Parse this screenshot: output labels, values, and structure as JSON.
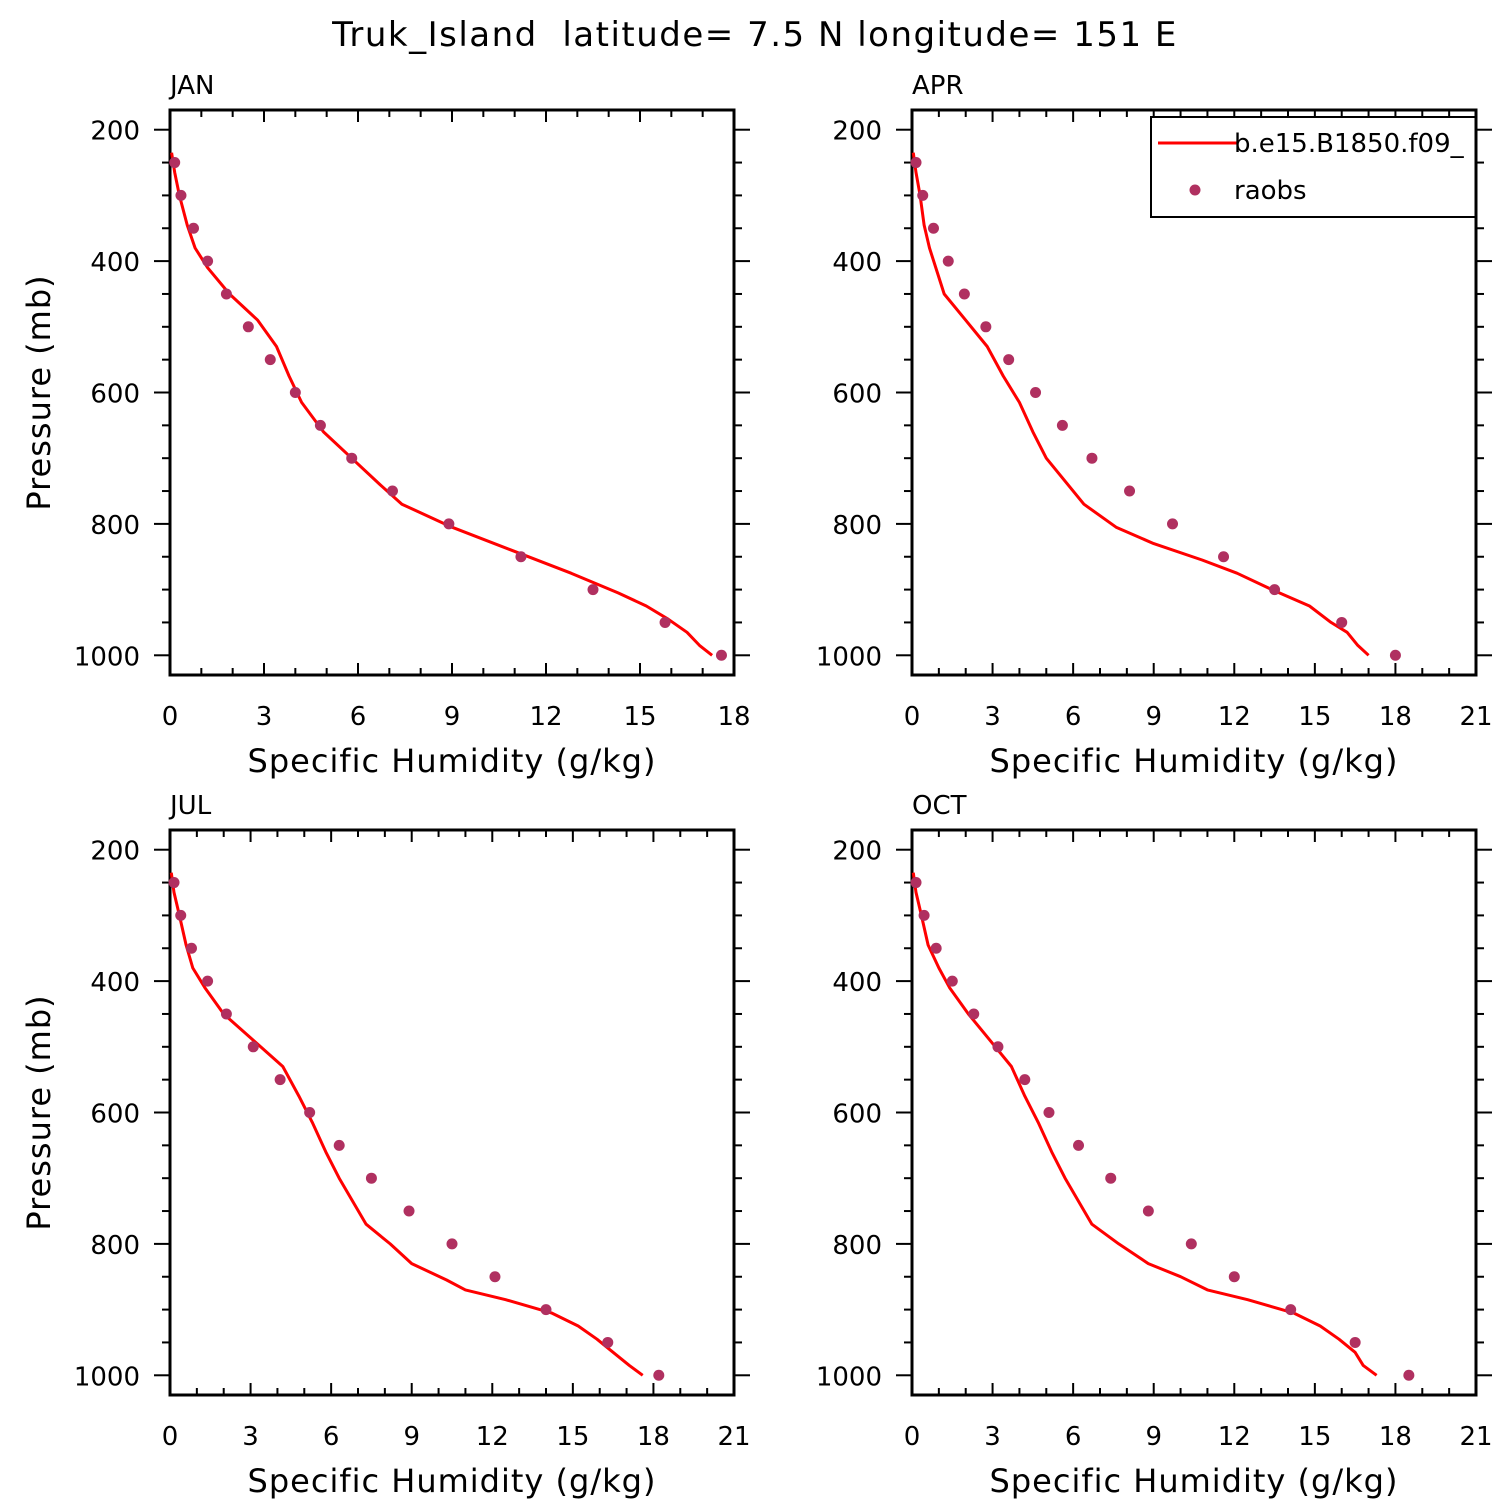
{
  "figure_title": "Truk_Island  latitude= 7.5 N longitude= 151 E",
  "legend": {
    "model_label": "b.e15.B1850.f09_",
    "obs_label": "raobs",
    "model_color": "#ff0000",
    "obs_color": "#b03060"
  },
  "chart_data": [
    {
      "type": "line",
      "panel": "JAN",
      "xlabel": "Specific Humidity (g/kg)",
      "ylabel": "Pressure (mb)",
      "xlim": [
        0,
        18
      ],
      "ylim": [
        1000,
        200
      ],
      "xticks": [
        0,
        3,
        6,
        9,
        12,
        15,
        18
      ],
      "yticks": [
        200,
        400,
        600,
        800,
        1000
      ],
      "series": [
        {
          "name": "b.e15.B1850.f09_",
          "points": [
            [
              0.05,
              235
            ],
            [
              0.15,
              265
            ],
            [
              0.3,
              300
            ],
            [
              0.55,
              345
            ],
            [
              0.8,
              380
            ],
            [
              1.2,
              410
            ],
            [
              1.9,
              450
            ],
            [
              2.8,
              490
            ],
            [
              3.4,
              530
            ],
            [
              3.8,
              575
            ],
            [
              4.2,
              615
            ],
            [
              4.9,
              660
            ],
            [
              5.8,
              700
            ],
            [
              6.7,
              740
            ],
            [
              7.4,
              770
            ],
            [
              9.0,
              805
            ],
            [
              10.9,
              840
            ],
            [
              12.8,
              875
            ],
            [
              14.3,
              905
            ],
            [
              15.2,
              925
            ],
            [
              15.9,
              945
            ],
            [
              16.5,
              965
            ],
            [
              16.9,
              985
            ],
            [
              17.3,
              1000
            ]
          ]
        },
        {
          "name": "raobs",
          "points": [
            [
              0.15,
              250
            ],
            [
              0.35,
              300
            ],
            [
              0.75,
              350
            ],
            [
              1.2,
              400
            ],
            [
              1.8,
              450
            ],
            [
              2.5,
              500
            ],
            [
              3.2,
              550
            ],
            [
              4.0,
              600
            ],
            [
              4.8,
              650
            ],
            [
              5.8,
              700
            ],
            [
              7.1,
              750
            ],
            [
              8.9,
              800
            ],
            [
              11.2,
              850
            ],
            [
              13.5,
              900
            ],
            [
              15.8,
              950
            ],
            [
              17.6,
              1000
            ]
          ]
        }
      ]
    },
    {
      "type": "line",
      "panel": "APR",
      "xlabel": "Specific Humidity (g/kg)",
      "ylabel": "",
      "xlim": [
        0,
        21
      ],
      "ylim": [
        1000,
        200
      ],
      "xticks": [
        0,
        3,
        6,
        9,
        12,
        15,
        18,
        21
      ],
      "yticks": [
        200,
        400,
        600,
        800,
        1000
      ],
      "series": [
        {
          "name": "b.e15.B1850.f09_",
          "points": [
            [
              0.05,
              235
            ],
            [
              0.15,
              265
            ],
            [
              0.3,
              300
            ],
            [
              0.45,
              345
            ],
            [
              0.65,
              380
            ],
            [
              1.2,
              450
            ],
            [
              2.0,
              490
            ],
            [
              2.8,
              530
            ],
            [
              3.4,
              575
            ],
            [
              4.0,
              615
            ],
            [
              4.5,
              660
            ],
            [
              5.0,
              700
            ],
            [
              6.4,
              770
            ],
            [
              7.6,
              805
            ],
            [
              9.0,
              830
            ],
            [
              10.8,
              855
            ],
            [
              12.1,
              875
            ],
            [
              13.4,
              900
            ],
            [
              14.8,
              925
            ],
            [
              15.6,
              950
            ],
            [
              16.2,
              965
            ],
            [
              16.6,
              985
            ],
            [
              17.0,
              1000
            ]
          ]
        },
        {
          "name": "raobs",
          "points": [
            [
              0.15,
              250
            ],
            [
              0.4,
              300
            ],
            [
              0.8,
              350
            ],
            [
              1.35,
              400
            ],
            [
              1.95,
              450
            ],
            [
              2.75,
              500
            ],
            [
              3.6,
              550
            ],
            [
              4.6,
              600
            ],
            [
              5.6,
              650
            ],
            [
              6.7,
              700
            ],
            [
              8.1,
              750
            ],
            [
              9.7,
              800
            ],
            [
              11.6,
              850
            ],
            [
              13.5,
              900
            ],
            [
              16.0,
              950
            ],
            [
              18.0,
              1000
            ]
          ]
        }
      ]
    },
    {
      "type": "line",
      "panel": "JUL",
      "xlabel": "Specific Humidity (g/kg)",
      "ylabel": "Pressure (mb)",
      "xlim": [
        0,
        21
      ],
      "ylim": [
        1000,
        200
      ],
      "xticks": [
        0,
        3,
        6,
        9,
        12,
        15,
        18,
        21
      ],
      "yticks": [
        200,
        400,
        600,
        800,
        1000
      ],
      "series": [
        {
          "name": "b.e15.B1850.f09_",
          "points": [
            [
              0.05,
              235
            ],
            [
              0.15,
              265
            ],
            [
              0.35,
              300
            ],
            [
              0.6,
              345
            ],
            [
              0.85,
              380
            ],
            [
              1.3,
              410
            ],
            [
              2.0,
              450
            ],
            [
              3.1,
              490
            ],
            [
              4.2,
              530
            ],
            [
              4.8,
              575
            ],
            [
              5.3,
              615
            ],
            [
              5.8,
              660
            ],
            [
              6.3,
              700
            ],
            [
              7.3,
              770
            ],
            [
              8.2,
              800
            ],
            [
              9.0,
              830
            ],
            [
              10.3,
              855
            ],
            [
              11.0,
              870
            ],
            [
              12.5,
              885
            ],
            [
              14.2,
              905
            ],
            [
              15.2,
              925
            ],
            [
              15.9,
              945
            ],
            [
              16.5,
              965
            ],
            [
              17.1,
              985
            ],
            [
              17.6,
              1000
            ]
          ]
        },
        {
          "name": "raobs",
          "points": [
            [
              0.15,
              250
            ],
            [
              0.4,
              300
            ],
            [
              0.8,
              350
            ],
            [
              1.4,
              400
            ],
            [
              2.1,
              450
            ],
            [
              3.1,
              500
            ],
            [
              4.1,
              550
            ],
            [
              5.2,
              600
            ],
            [
              6.3,
              650
            ],
            [
              7.5,
              700
            ],
            [
              8.9,
              750
            ],
            [
              10.5,
              800
            ],
            [
              12.1,
              850
            ],
            [
              14.0,
              900
            ],
            [
              16.3,
              950
            ],
            [
              18.2,
              1000
            ]
          ]
        }
      ]
    },
    {
      "type": "line",
      "panel": "OCT",
      "xlabel": "Specific Humidity (g/kg)",
      "ylabel": "",
      "xlim": [
        0,
        21
      ],
      "ylim": [
        1000,
        200
      ],
      "xticks": [
        0,
        3,
        6,
        9,
        12,
        15,
        18,
        21
      ],
      "yticks": [
        200,
        400,
        600,
        800,
        1000
      ],
      "series": [
        {
          "name": "b.e15.B1850.f09_",
          "points": [
            [
              0.05,
              235
            ],
            [
              0.15,
              265
            ],
            [
              0.35,
              300
            ],
            [
              0.6,
              345
            ],
            [
              1.0,
              380
            ],
            [
              1.4,
              410
            ],
            [
              2.1,
              450
            ],
            [
              2.9,
              490
            ],
            [
              3.7,
              530
            ],
            [
              4.2,
              575
            ],
            [
              4.7,
              615
            ],
            [
              5.2,
              660
            ],
            [
              5.7,
              700
            ],
            [
              6.7,
              770
            ],
            [
              7.7,
              800
            ],
            [
              8.8,
              830
            ],
            [
              10.0,
              850
            ],
            [
              11.0,
              870
            ],
            [
              12.5,
              885
            ],
            [
              14.2,
              905
            ],
            [
              15.2,
              925
            ],
            [
              15.9,
              945
            ],
            [
              16.5,
              965
            ],
            [
              16.8,
              985
            ],
            [
              17.3,
              1000
            ]
          ]
        },
        {
          "name": "raobs",
          "points": [
            [
              0.15,
              250
            ],
            [
              0.45,
              300
            ],
            [
              0.9,
              350
            ],
            [
              1.5,
              400
            ],
            [
              2.3,
              450
            ],
            [
              3.2,
              500
            ],
            [
              4.2,
              550
            ],
            [
              5.1,
              600
            ],
            [
              6.2,
              650
            ],
            [
              7.4,
              700
            ],
            [
              8.8,
              750
            ],
            [
              10.4,
              800
            ],
            [
              12.0,
              850
            ],
            [
              14.1,
              900
            ],
            [
              16.5,
              950
            ],
            [
              18.5,
              1000
            ]
          ]
        }
      ]
    }
  ]
}
